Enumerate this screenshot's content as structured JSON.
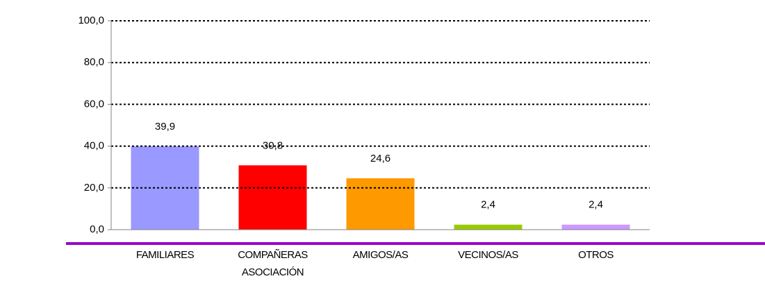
{
  "chart_data": {
    "type": "bar",
    "categories": [
      "FAMILIARES",
      "COMPAÑERAS ASOCIACIÓN",
      "AMIGOS/AS",
      "VECINOS/AS",
      "OTROS"
    ],
    "values": [
      39.9,
      30.8,
      24.6,
      2.4,
      2.4
    ],
    "value_labels": [
      "39,9",
      "30,8",
      "24,6",
      "2,4",
      "2,4"
    ],
    "colors": [
      "#9999ff",
      "#ff0000",
      "#ff9900",
      "#99cc00",
      "#cc99ff"
    ],
    "ylim": [
      0,
      100
    ],
    "yticks": [
      {
        "value": 0,
        "label": "0,0"
      },
      {
        "value": 20,
        "label": "20,0"
      },
      {
        "value": 40,
        "label": "40,0"
      },
      {
        "value": 60,
        "label": "60,0"
      },
      {
        "value": 80,
        "label": "80,0"
      },
      {
        "value": 100,
        "label": "100,0"
      }
    ],
    "grid": true
  }
}
